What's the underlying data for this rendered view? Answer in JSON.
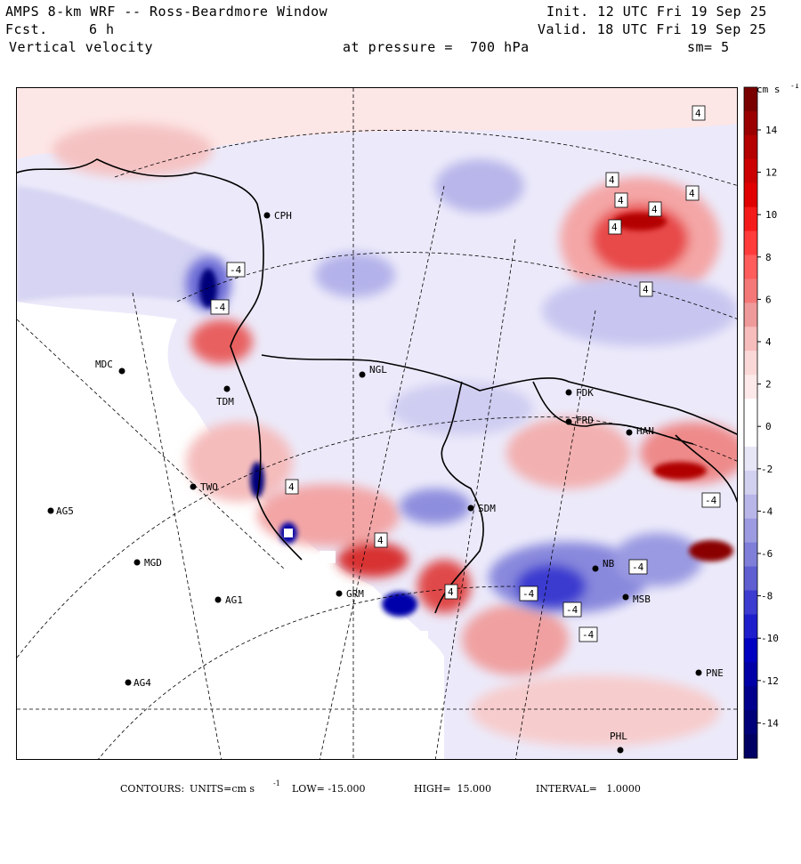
{
  "header": {
    "title": "AMPS 8-km WRF -- Ross-Beardmore Window",
    "forecast_label": "Fcst.",
    "forecast_hours": "6 h",
    "field": "Vertical velocity",
    "init": "Init. 12 UTC Fri 19 Sep 25",
    "valid": "Valid. 18 UTC Fri 19 Sep 25",
    "pressure": "at pressure =  700 hPa",
    "smoothing": "sm= 5"
  },
  "stations": [
    {
      "name": "CPH"
    },
    {
      "name": "MDC"
    },
    {
      "name": "TDM"
    },
    {
      "name": "NGL"
    },
    {
      "name": "FDK"
    },
    {
      "name": "FRD"
    },
    {
      "name": "HAN"
    },
    {
      "name": "TWO"
    },
    {
      "name": "AG5"
    },
    {
      "name": "SDM"
    },
    {
      "name": "MGD"
    },
    {
      "name": "AG1"
    },
    {
      "name": "GRM"
    },
    {
      "name": "AG4"
    },
    {
      "name": "NB"
    },
    {
      "name": "MSB"
    },
    {
      "name": "PNE"
    },
    {
      "name": "PHL"
    }
  ],
  "contour_labels": [
    "4",
    "4",
    "4",
    "4",
    "4",
    "4",
    "4",
    "4",
    "4",
    "4",
    "-4",
    "-4",
    "-4",
    "-4",
    "-4",
    "-4",
    "-4"
  ],
  "colorbar": {
    "units": "cm s",
    "units_exp": "-1",
    "ticks": [
      "14",
      "12",
      "10",
      "8",
      "6",
      "4",
      "2",
      "0",
      "-2",
      "-4",
      "-6",
      "-8",
      "-10",
      "-12",
      "-14"
    ],
    "colors": [
      "#7a0000",
      "#9a0000",
      "#b50000",
      "#cc0000",
      "#e00000",
      "#f51a1a",
      "#ff3b3b",
      "#ff5c5c",
      "#f57878",
      "#ef9a9a",
      "#f7bcbc",
      "#fbd8d8",
      "#fde9e9",
      "#ffffff",
      "#ffffff",
      "#e7e6f6",
      "#d2d0ef",
      "#b8b6e8",
      "#9c9ae0",
      "#7f7fda",
      "#5f5fd2",
      "#3c3cd0",
      "#1e1ecc",
      "#0000c0",
      "#0000a6",
      "#00008c",
      "#000078",
      "#000064"
    ]
  },
  "footer": {
    "contours": "CONTOURS:",
    "units": "UNITS=cm s",
    "units_exp": "-1",
    "low": "LOW= -15.000",
    "high": "HIGH=  15.000",
    "interval": "INTERVAL=   1.0000"
  }
}
